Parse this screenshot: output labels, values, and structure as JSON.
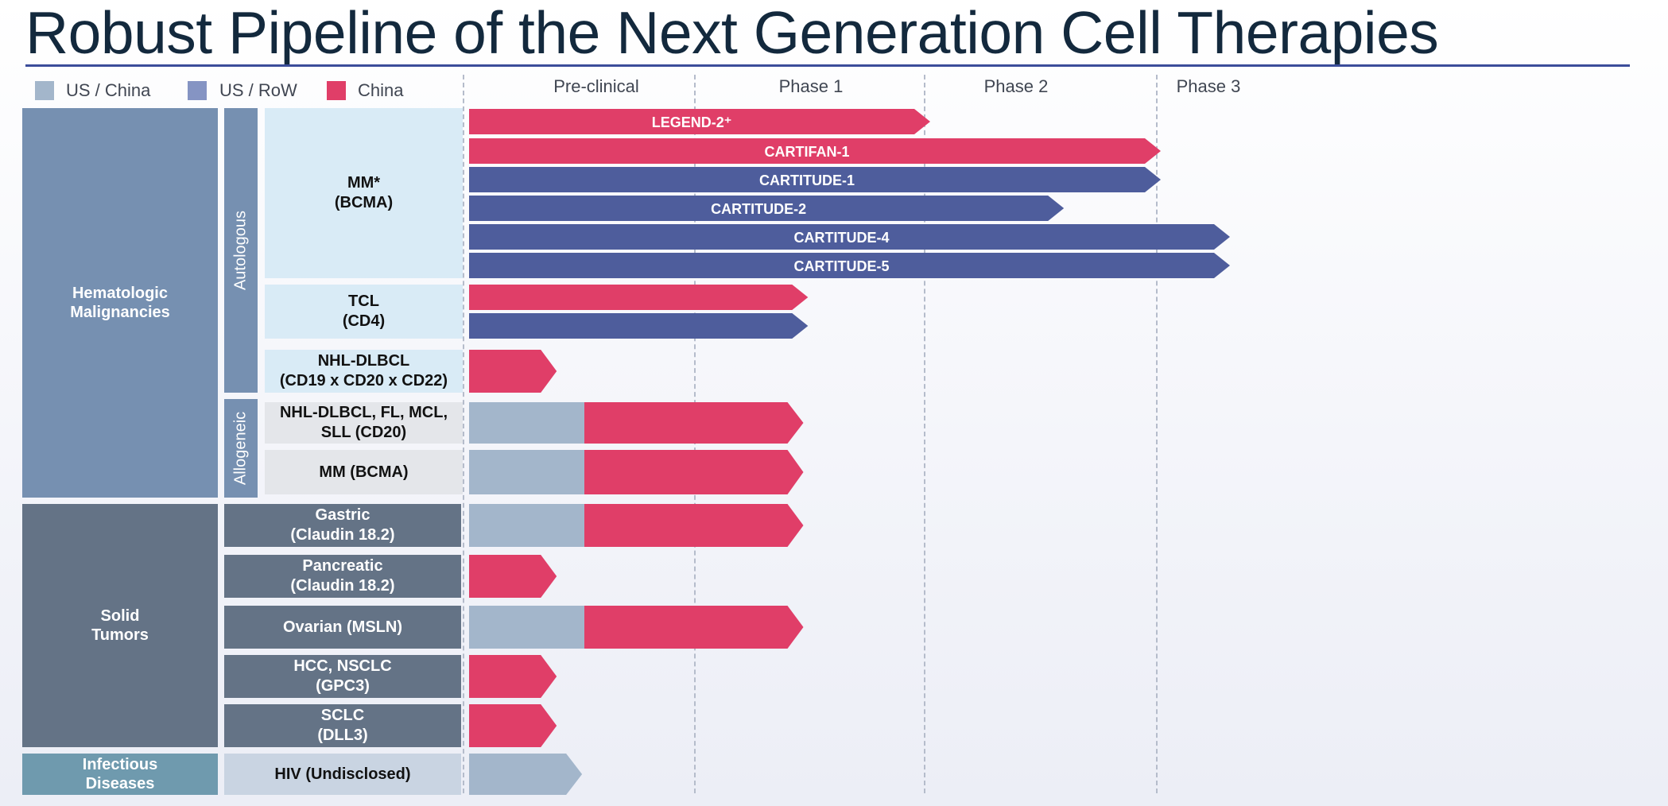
{
  "title": "Robust Pipeline of the Next Generation Cell Therapies",
  "colors": {
    "us_china": "#a3b6cb",
    "us_row": "#4e5d9c",
    "china": "#e03e68",
    "legend_us_row": "#8594c3"
  },
  "legend": [
    {
      "label": "US / China",
      "color": "#a3b6cb"
    },
    {
      "label": "US / RoW",
      "color": "#8594c3"
    },
    {
      "label": "China",
      "color": "#e03e68"
    }
  ],
  "phases": [
    "Pre-clinical",
    "Phase 1",
    "Phase 2",
    "Phase 3"
  ],
  "categories": [
    {
      "label": "Hematologic\nMalignancies"
    },
    {
      "label": "Solid\nTumors"
    },
    {
      "label": "Infectious\nDiseases"
    }
  ],
  "subcategories": [
    {
      "label": "Autologous"
    },
    {
      "label": "Allogeneic"
    }
  ],
  "indications": [
    {
      "label": "MM*\n(BCMA)"
    },
    {
      "label": "TCL\n(CD4)"
    },
    {
      "label": "NHL-DLBCL\n(CD19 x CD20 x CD22)"
    },
    {
      "label": "NHL-DLBCL, FL,  MCL,\nSLL (CD20)"
    },
    {
      "label": "MM (BCMA)"
    },
    {
      "label": "Gastric\n(Claudin 18.2)"
    },
    {
      "label": "Pancreatic\n(Claudin 18.2)"
    },
    {
      "label": "Ovarian (MSLN)"
    },
    {
      "label": "HCC, NSCLC\n(GPC3)"
    },
    {
      "label": "SCLC\n(DLL3)"
    },
    {
      "label": "HIV (Undisclosed)"
    }
  ],
  "chart_data": {
    "type": "bar",
    "orientation": "horizontal",
    "x_axis_categories": [
      "Pre-clinical",
      "Phase 1",
      "Phase 2",
      "Phase 3"
    ],
    "progress_unit": "phase_columns_completed",
    "programs": [
      {
        "indication": "MM* (BCMA)",
        "label": "LEGEND-2⁺",
        "region": "China",
        "progress": 2.0
      },
      {
        "indication": "MM* (BCMA)",
        "label": "CARTIFAN-1",
        "region": "China",
        "progress": 3.0
      },
      {
        "indication": "MM* (BCMA)",
        "label": "CARTITUDE-1",
        "region": "US / RoW",
        "progress": 3.0
      },
      {
        "indication": "MM* (BCMA)",
        "label": "CARTITUDE-2",
        "region": "US / RoW",
        "progress": 2.58
      },
      {
        "indication": "MM* (BCMA)",
        "label": "CARTITUDE-4",
        "region": "US / RoW",
        "progress": 3.3
      },
      {
        "indication": "MM* (BCMA)",
        "label": "CARTITUDE-5",
        "region": "US / RoW",
        "progress": 3.3
      },
      {
        "indication": "TCL (CD4)",
        "label": "",
        "region": "China",
        "progress": 1.47
      },
      {
        "indication": "TCL (CD4)",
        "label": "",
        "region": "US / RoW",
        "progress": 1.47
      },
      {
        "indication": "NHL-DLBCL (CD19 x CD20 x CD22)",
        "label": "",
        "region": "China",
        "progress": 0.38
      },
      {
        "indication": "NHL-DLBCL, FL, MCL, SLL (CD20)",
        "label": "",
        "region": "US / China",
        "us_china_progress": 0.5,
        "progress": 1.45
      },
      {
        "indication": "MM (BCMA)",
        "label": "",
        "region": "US / China",
        "us_china_progress": 0.5,
        "progress": 1.45
      },
      {
        "indication": "Gastric (Claudin 18.2)",
        "label": "",
        "region": "US / China",
        "us_china_progress": 0.5,
        "progress": 1.45
      },
      {
        "indication": "Pancreatic (Claudin 18.2)",
        "label": "",
        "region": "China",
        "progress": 0.38
      },
      {
        "indication": "Ovarian (MSLN)",
        "label": "",
        "region": "US / China",
        "us_china_progress": 0.5,
        "progress": 1.45
      },
      {
        "indication": "HCC, NSCLC (GPC3)",
        "label": "",
        "region": "China",
        "progress": 0.38
      },
      {
        "indication": "SCLC (DLL3)",
        "label": "",
        "region": "China",
        "progress": 0.38
      },
      {
        "indication": "HIV (Undisclosed)",
        "label": "",
        "region": "US / China",
        "progress": 0.49
      }
    ]
  }
}
